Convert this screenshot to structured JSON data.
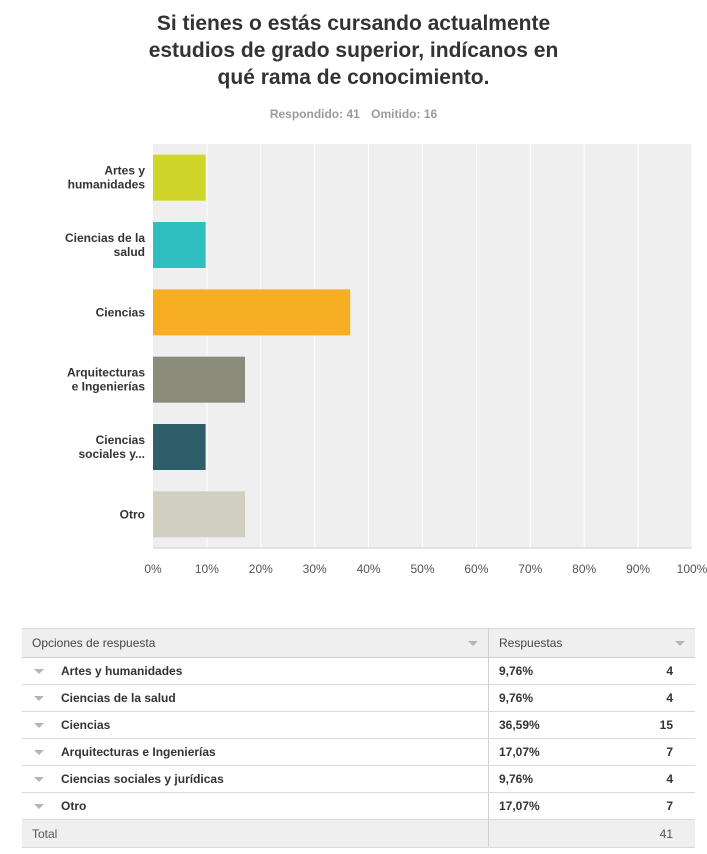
{
  "title_lines": [
    "Si tienes o estás cursando actualmente",
    "estudios de grado superior, indícanos en",
    "qué rama de conocimiento."
  ],
  "stats": {
    "answered": "Respondido: 41",
    "skipped": "Omitido: 16"
  },
  "chart_data": {
    "type": "bar",
    "orientation": "horizontal",
    "categories": [
      [
        "Artes y",
        "humanidades"
      ],
      [
        "Ciencias de la",
        "salud"
      ],
      [
        "Ciencias"
      ],
      [
        "Arquitecturas",
        "e Ingenierías"
      ],
      [
        "Ciencias",
        "sociales y..."
      ],
      [
        "Otro"
      ]
    ],
    "values": [
      9.76,
      9.76,
      36.59,
      17.07,
      9.76,
      17.07
    ],
    "colors": [
      "#d0d52b",
      "#2fbfc1",
      "#f8ae23",
      "#8a8b7b",
      "#2f5e6b",
      "#d1cfc1"
    ],
    "xlim": [
      0,
      100
    ],
    "x_ticks": [
      "0%",
      "10%",
      "20%",
      "30%",
      "40%",
      "50%",
      "60%",
      "70%",
      "80%",
      "90%",
      "100%"
    ],
    "background": "#efefef",
    "grid": true
  },
  "table": {
    "headers": [
      "Opciones de respuesta",
      "Respuestas"
    ],
    "rows": [
      {
        "option": "Artes y humanidades",
        "percent": "9,76%",
        "count": "4"
      },
      {
        "option": "Ciencias de la salud",
        "percent": "9,76%",
        "count": "4"
      },
      {
        "option": "Ciencias",
        "percent": "36,59%",
        "count": "15"
      },
      {
        "option": "Arquitecturas e Ingenierías",
        "percent": "17,07%",
        "count": "7"
      },
      {
        "option": "Ciencias sociales y jurídicas",
        "percent": "9,76%",
        "count": "4"
      },
      {
        "option": "Otro",
        "percent": "17,07%",
        "count": "7"
      }
    ],
    "total_label": "Total",
    "total_value": "41"
  }
}
